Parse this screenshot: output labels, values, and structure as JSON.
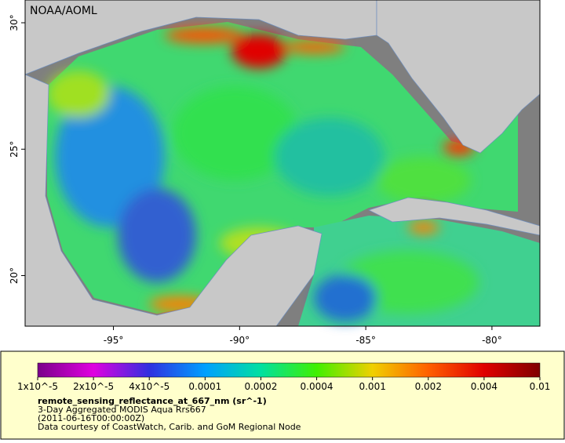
{
  "map": {
    "credit": "NOAA/AOML",
    "lon": {
      "extent": [
        -98.5,
        -78.1
      ],
      "ticks": [
        {
          "value": -95,
          "label": "-95°"
        },
        {
          "value": -90,
          "label": "-90°"
        },
        {
          "value": -85,
          "label": "-85°"
        },
        {
          "value": -80,
          "label": "-80°"
        }
      ]
    },
    "lat": {
      "extent": [
        18,
        30.9
      ],
      "ticks": [
        {
          "value": 20,
          "label": "20°"
        },
        {
          "value": 25,
          "label": "25°"
        },
        {
          "value": 30,
          "label": "30°"
        }
      ]
    }
  },
  "colorbar": {
    "labels": [
      "1x10^-5",
      "2x10^-5",
      "4x10^-5",
      "0.0001",
      "0.0002",
      "0.0004",
      "0.001",
      "0.002",
      "0.004",
      "0.01"
    ],
    "colors": [
      "#7a008a",
      "#e000e0",
      "#3030e0",
      "#00a0ff",
      "#00e0a0",
      "#40f000",
      "#f0d000",
      "#ff6000",
      "#e00000",
      "#800000"
    ]
  },
  "caption": {
    "title": "remote_sensing_reflectance_at_667_nm (sr^-1)",
    "lines": [
      "3-Day Aggregated MODIS Aqua Rrs667",
      "(2011-06-16T00:00:00Z)",
      "Data courtesy of CoastWatch, Carib. and GoM Regional Node"
    ]
  }
}
